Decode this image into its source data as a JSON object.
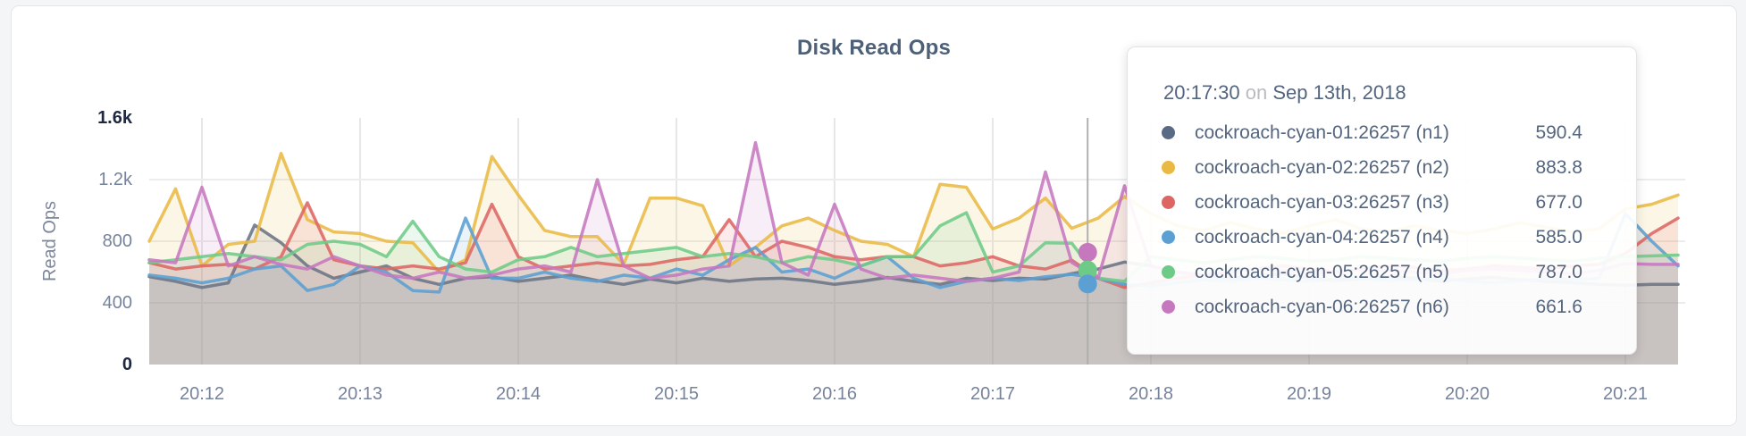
{
  "page": {
    "background": "#f4f5f6"
  },
  "card": {
    "background": "#ffffff",
    "border_color": "#e4e5e7"
  },
  "chart_data": {
    "type": "area",
    "title": "Disk Read Ops",
    "ylabel": "Read Ops",
    "xlabel": "",
    "ylim": [
      0,
      1600
    ],
    "grid": true,
    "x_step_seconds": 10,
    "y_ticks": [
      {
        "label": "1.6k",
        "value": 1600,
        "strong": true,
        "gridline": false
      },
      {
        "label": "1.2k",
        "value": 1200,
        "strong": false,
        "gridline": true
      },
      {
        "label": "800",
        "value": 800,
        "strong": false,
        "gridline": true
      },
      {
        "label": "400",
        "value": 400,
        "strong": false,
        "gridline": true
      },
      {
        "label": "0",
        "value": 0,
        "strong": true,
        "gridline": false
      }
    ],
    "x_ticks": [
      {
        "label": "20:12",
        "t": 20
      },
      {
        "label": "20:13",
        "t": 80
      },
      {
        "label": "20:14",
        "t": 140
      },
      {
        "label": "20:15",
        "t": 200
      },
      {
        "label": "20:16",
        "t": 260
      },
      {
        "label": "20:17",
        "t": 320
      },
      {
        "label": "20:18",
        "t": 380
      },
      {
        "label": "20:19",
        "t": 440
      },
      {
        "label": "20:20",
        "t": 500
      },
      {
        "label": "20:21",
        "t": 560
      }
    ],
    "series": [
      {
        "name": "cockroach-cyan-01:26257 (n1)",
        "color": "#6b7484",
        "values": [
          570,
          540,
          500,
          530,
          905,
          790,
          640,
          560,
          600,
          640,
          560,
          520,
          560,
          570,
          540,
          560,
          580,
          545,
          520,
          555,
          530,
          560,
          540,
          555,
          560,
          545,
          520,
          540,
          565,
          540,
          520,
          560,
          545,
          560,
          555,
          590.4,
          620,
          665,
          640,
          600,
          580,
          560,
          575,
          590,
          560,
          545,
          555,
          570,
          560,
          540,
          555,
          565,
          550,
          540,
          530,
          520,
          515,
          520,
          520
        ]
      },
      {
        "name": "cockroach-cyan-02:26257 (n2)",
        "color": "#e9b944",
        "values": [
          800,
          1140,
          640,
          780,
          800,
          1370,
          940,
          860,
          850,
          800,
          790,
          600,
          680,
          1350,
          1100,
          870,
          830,
          830,
          650,
          1080,
          1080,
          1030,
          640,
          760,
          900,
          950,
          870,
          800,
          780,
          700,
          1170,
          1150,
          880,
          950,
          1080,
          883.8,
          950,
          1090,
          980,
          900,
          870,
          920,
          880,
          850,
          900,
          940,
          880,
          860,
          900,
          870,
          850,
          880,
          920,
          890,
          860,
          880,
          1010,
          1040,
          1100
        ]
      },
      {
        "name": "cockroach-cyan-03:26257 (n3)",
        "color": "#dd6663",
        "values": [
          660,
          620,
          640,
          650,
          620,
          700,
          1050,
          680,
          640,
          620,
          640,
          620,
          660,
          1040,
          700,
          620,
          640,
          660,
          640,
          650,
          680,
          700,
          940,
          700,
          800,
          760,
          700,
          680,
          700,
          700,
          640,
          660,
          700,
          640,
          620,
          677,
          560,
          500,
          530,
          560,
          580,
          600,
          620,
          640,
          620,
          600,
          620,
          640,
          630,
          610,
          620,
          640,
          630,
          620,
          640,
          650,
          720,
          850,
          950
        ]
      },
      {
        "name": "cockroach-cyan-04:26257 (n4)",
        "color": "#5b9fd3",
        "values": [
          580,
          560,
          530,
          560,
          620,
          640,
          480,
          520,
          640,
          600,
          480,
          470,
          950,
          560,
          560,
          600,
          560,
          540,
          580,
          560,
          620,
          580,
          680,
          760,
          600,
          620,
          560,
          640,
          700,
          560,
          500,
          540,
          560,
          545,
          570,
          585,
          560,
          520,
          510,
          530,
          550,
          540,
          560,
          550,
          540,
          555,
          560,
          545,
          550,
          560,
          540,
          530,
          545,
          555,
          550,
          560,
          980,
          800,
          640
        ]
      },
      {
        "name": "cockroach-cyan-05:26257 (n5)",
        "color": "#6ecb87",
        "values": [
          660,
          680,
          700,
          720,
          700,
          680,
          780,
          800,
          780,
          700,
          930,
          700,
          620,
          600,
          680,
          700,
          760,
          700,
          720,
          740,
          760,
          700,
          720,
          700,
          660,
          700,
          680,
          640,
          700,
          700,
          900,
          985,
          600,
          640,
          790,
          787,
          560,
          540,
          700,
          680,
          660,
          680,
          700,
          690,
          670,
          680,
          700,
          690,
          680,
          670,
          690,
          700,
          690,
          680,
          670,
          690,
          700,
          705,
          710
        ]
      },
      {
        "name": "cockroach-cyan-06:26257 (n6)",
        "color": "#c678bf",
        "values": [
          680,
          660,
          1150,
          640,
          700,
          650,
          620,
          700,
          640,
          580,
          560,
          600,
          560,
          580,
          620,
          640,
          600,
          1200,
          640,
          560,
          580,
          620,
          640,
          1440,
          660,
          580,
          1040,
          620,
          560,
          580,
          560,
          540,
          560,
          600,
          1250,
          661.6,
          560,
          1160,
          640,
          600,
          580,
          600,
          620,
          610,
          590,
          600,
          620,
          610,
          600,
          590,
          610,
          620,
          610,
          600,
          590,
          610,
          655,
          650,
          650
        ]
      }
    ]
  },
  "hover": {
    "t_seconds": 356,
    "line_color": "#b0b0b0",
    "dots": [
      {
        "series_index": 5,
        "value": 728
      },
      {
        "series_index": 4,
        "value": 613
      },
      {
        "series_index": 3,
        "value": 523
      }
    ]
  },
  "tooltip": {
    "time": "20:17:30",
    "conjunction": "on",
    "date": "Sep 13th, 2018",
    "rows": [
      {
        "name": "cockroach-cyan-01:26257 (n1)",
        "value": "590.4",
        "color": "#5a6a85"
      },
      {
        "name": "cockroach-cyan-02:26257 (n2)",
        "value": "883.8",
        "color": "#e9b944"
      },
      {
        "name": "cockroach-cyan-03:26257 (n3)",
        "value": "677.0",
        "color": "#dd6663"
      },
      {
        "name": "cockroach-cyan-04:26257 (n4)",
        "value": "585.0",
        "color": "#5b9fd3"
      },
      {
        "name": "cockroach-cyan-05:26257 (n5)",
        "value": "787.0",
        "color": "#6ecb87"
      },
      {
        "name": "cockroach-cyan-06:26257 (n6)",
        "value": "661.6",
        "color": "#c678bf"
      }
    ]
  }
}
